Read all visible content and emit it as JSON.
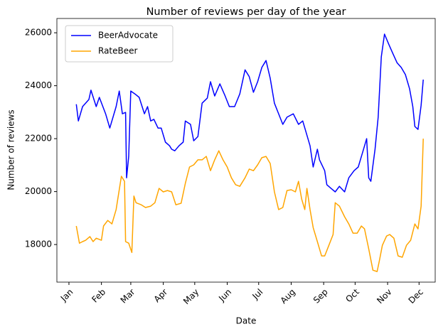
{
  "chart_data": {
    "type": "line",
    "title": "Number of reviews per day of the year",
    "x_label": "Date",
    "y_label": "Number of reviews",
    "xlim": [
      -10.5,
      350.4
    ],
    "ylim": [
      16580,
      26540
    ],
    "xticks": [
      {
        "value": 1,
        "label": "Jan"
      },
      {
        "value": 32,
        "label": "Feb"
      },
      {
        "value": 60,
        "label": "Mar"
      },
      {
        "value": 91,
        "label": "Apr"
      },
      {
        "value": 121,
        "label": "May"
      },
      {
        "value": 152,
        "label": "Jun"
      },
      {
        "value": 182,
        "label": "Jul"
      },
      {
        "value": 213,
        "label": "Aug"
      },
      {
        "value": 244,
        "label": "Sep"
      },
      {
        "value": 274,
        "label": "Oct"
      },
      {
        "value": 305,
        "label": "Nov"
      },
      {
        "value": 335,
        "label": "Dec"
      }
    ],
    "yticks": [
      18000,
      20000,
      22000,
      24000,
      26000
    ],
    "legend": "upper left",
    "grid": false,
    "series": [
      {
        "name": "BeerAdvocate",
        "color": "#0000ff",
        "x": [
          8,
          10,
          14,
          20,
          22,
          27,
          30,
          36,
          40,
          46,
          49,
          52,
          55,
          56,
          58,
          60,
          64,
          68,
          73,
          76,
          79,
          82,
          86,
          89,
          93,
          97,
          99,
          102,
          106,
          110,
          112,
          117,
          120,
          124,
          128,
          133,
          136,
          140,
          145,
          150,
          154,
          159,
          164,
          169,
          173,
          177,
          181,
          185,
          189,
          193,
          197,
          201,
          205,
          209,
          215,
          220,
          224,
          227,
          231,
          234,
          238,
          240,
          245,
          247,
          251,
          255,
          259,
          264,
          268,
          273,
          277,
          281,
          285,
          287,
          289,
          293,
          296,
          299,
          302,
          306,
          310,
          314,
          318,
          322,
          326,
          329,
          331,
          334,
          337,
          339
        ],
        "values": [
          23300,
          22670,
          23210,
          23480,
          23830,
          23210,
          23560,
          22940,
          22400,
          23210,
          23800,
          22940,
          22990,
          20520,
          21330,
          23800,
          23690,
          23560,
          22940,
          23210,
          22670,
          22730,
          22400,
          22400,
          21870,
          21730,
          21600,
          21540,
          21730,
          21870,
          22670,
          22540,
          21920,
          22080,
          23340,
          23530,
          24150,
          23610,
          24070,
          23610,
          23210,
          23210,
          23690,
          24600,
          24340,
          23750,
          24150,
          24690,
          24950,
          24280,
          23340,
          22940,
          22540,
          22810,
          22940,
          22540,
          22670,
          22270,
          21730,
          20930,
          21600,
          21200,
          20790,
          20260,
          20120,
          19990,
          20200,
          19990,
          20520,
          20790,
          20930,
          21460,
          22000,
          20520,
          20390,
          21600,
          22810,
          25090,
          25950,
          25570,
          25220,
          24870,
          24690,
          24420,
          23880,
          23210,
          22460,
          22350,
          23260,
          24230
        ]
      },
      {
        "name": "RateBeer",
        "color": "#ffa500",
        "x": [
          8,
          11,
          14,
          17,
          21,
          24,
          27,
          32,
          34,
          38,
          42,
          46,
          51,
          54,
          55,
          58,
          61,
          63,
          65,
          70,
          74,
          79,
          83,
          87,
          91,
          95,
          99,
          103,
          108,
          112,
          116,
          120,
          124,
          128,
          132,
          136,
          140,
          144,
          148,
          152,
          156,
          160,
          164,
          169,
          173,
          177,
          181,
          185,
          189,
          193,
          197,
          201,
          205,
          209,
          213,
          217,
          220,
          223,
          226,
          228,
          231,
          234,
          238,
          242,
          245,
          249,
          253,
          255,
          259,
          264,
          268,
          272,
          276,
          280,
          283,
          287,
          291,
          295,
          297,
          300,
          304,
          307,
          311,
          315,
          319,
          323,
          327,
          331,
          334,
          337,
          339
        ],
        "values": [
          18700,
          18050,
          18110,
          18160,
          18300,
          18110,
          18240,
          18160,
          18700,
          18910,
          18780,
          19320,
          20580,
          20390,
          18110,
          18050,
          17700,
          19830,
          19580,
          19500,
          19400,
          19450,
          19580,
          20120,
          19990,
          20040,
          19990,
          19500,
          19560,
          20310,
          20930,
          21010,
          21200,
          21200,
          21330,
          20790,
          21200,
          21540,
          21200,
          20930,
          20520,
          20260,
          20200,
          20520,
          20850,
          20790,
          21010,
          21280,
          21330,
          21060,
          19990,
          19320,
          19400,
          20040,
          20070,
          19990,
          20390,
          19720,
          19320,
          20120,
          19320,
          18640,
          18110,
          17570,
          17570,
          17970,
          18380,
          19580,
          19450,
          19050,
          18780,
          18430,
          18430,
          18700,
          18590,
          17840,
          17030,
          16980,
          17360,
          17970,
          18320,
          18380,
          18240,
          17570,
          17520,
          17970,
          18160,
          18780,
          18590,
          19450,
          22000
        ]
      }
    ]
  }
}
